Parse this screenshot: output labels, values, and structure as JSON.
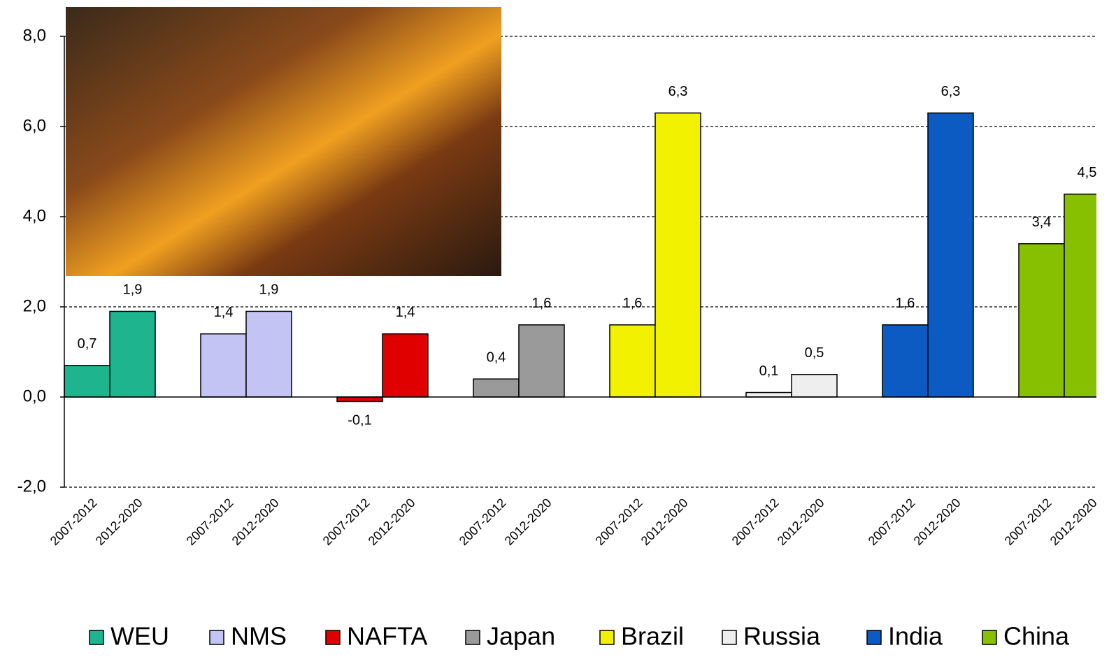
{
  "chart_data": {
    "type": "bar",
    "categories": [
      "2007-2012",
      "2012-2020"
    ],
    "series": [
      {
        "name": "WEU",
        "color": "#1db48e",
        "values": [
          0.7,
          1.9
        ],
        "value_labels": [
          "0,7",
          "1,9"
        ]
      },
      {
        "name": "NMS",
        "color": "#c4c4f4",
        "values": [
          1.4,
          1.9
        ],
        "value_labels": [
          "1,4",
          "1,9"
        ]
      },
      {
        "name": "NAFTA",
        "color": "#e10000",
        "values": [
          -0.1,
          1.4
        ],
        "value_labels": [
          "-0,1",
          "1,4"
        ]
      },
      {
        "name": "Japan",
        "color": "#9a9a9a",
        "values": [
          0.4,
          1.6
        ],
        "value_labels": [
          "0,4",
          "1,6"
        ]
      },
      {
        "name": "Brazil",
        "color": "#f2f200",
        "values": [
          1.6,
          6.3
        ],
        "value_labels": [
          "1,6",
          "6,3"
        ]
      },
      {
        "name": "Russia",
        "color": "#eeeeee",
        "values": [
          0.1,
          0.5
        ],
        "value_labels": [
          "0,1",
          "0,5"
        ]
      },
      {
        "name": "India",
        "color": "#0b5bc2",
        "values": [
          1.6,
          6.3
        ],
        "value_labels": [
          "1,6",
          "6,3"
        ]
      },
      {
        "name": "China",
        "color": "#86c000",
        "values": [
          3.4,
          4.5
        ],
        "value_labels": [
          "3,4",
          "4,5"
        ]
      }
    ],
    "ylim": [
      -2,
      8
    ],
    "yticks": [
      {
        "value": -2,
        "label": "-2,0"
      },
      {
        "value": 0,
        "label": "0,0"
      },
      {
        "value": 2,
        "label": "2,0"
      },
      {
        "value": 4,
        "label": "4,0"
      },
      {
        "value": 6,
        "label": "6,0"
      },
      {
        "value": 8,
        "label": "8,0"
      }
    ],
    "grid": true,
    "legend": "bottom"
  }
}
